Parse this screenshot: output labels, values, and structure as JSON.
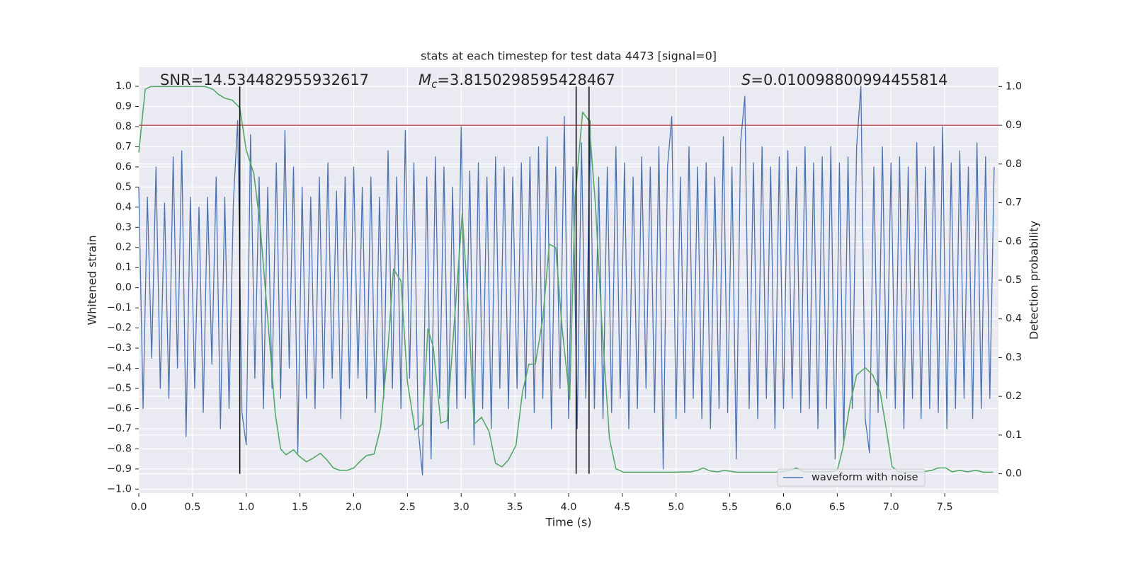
{
  "chart_data": {
    "type": "line",
    "title": "stats at each timestep for test data 4473 [signal=0]",
    "x_label": "Time (s)",
    "y_label": "Whitened strain",
    "y2_label": "Detection probability",
    "annotations": [
      {
        "text": "SNR=14.534482955932617"
      },
      {
        "symbol": "M",
        "subscript": "c",
        "text": "=3.8150298595428467"
      },
      {
        "symbol": "S",
        "text": "=0.010098800994455814"
      }
    ],
    "xlim": [
      0,
      8
    ],
    "ylim": [
      -1.02,
      1.095
    ],
    "y2lim": [
      -0.05,
      1.05
    ],
    "xticks": [
      {
        "value": 0,
        "label": "0.0"
      },
      0.5,
      {
        "value": 1,
        "label": "1.0"
      },
      1.5,
      {
        "value": 2,
        "label": "2.0"
      },
      2.5,
      {
        "value": 3,
        "label": "3.0"
      },
      3.5,
      {
        "value": 4,
        "label": "4.0"
      },
      4.5,
      {
        "value": 5,
        "label": "5.0"
      },
      5.5,
      {
        "value": 6,
        "label": "6.0"
      },
      6.5,
      {
        "value": 7,
        "label": "7.0"
      },
      7.5
    ],
    "yticks": [
      {
        "value": -1,
        "label": "−1.0"
      },
      {
        "value": -0.9,
        "label": "−0.9"
      },
      {
        "value": -0.8,
        "label": "−0.8"
      },
      {
        "value": -0.7,
        "label": "−0.7"
      },
      {
        "value": -0.6,
        "label": "−0.6"
      },
      {
        "value": -0.5,
        "label": "−0.5"
      },
      {
        "value": -0.4,
        "label": "−0.4"
      },
      {
        "value": -0.3,
        "label": "−0.3"
      },
      {
        "value": -0.2,
        "label": "−0.2"
      },
      {
        "value": -0.1,
        "label": "−0.1"
      },
      {
        "value": 0,
        "label": "0.0"
      },
      0.1,
      0.2,
      0.3,
      0.4,
      0.5,
      0.6,
      0.7,
      0.8,
      0.9,
      {
        "value": 1,
        "label": "1.0"
      }
    ],
    "y2ticks": [
      {
        "value": 0,
        "label": "0.0"
      },
      0.1,
      0.2,
      0.3,
      0.4,
      0.5,
      0.6,
      0.7,
      0.8,
      0.9,
      {
        "value": 1,
        "label": "1.0"
      }
    ],
    "grid": true,
    "legend": "lower right",
    "series": [
      {
        "name": "waveform with noise",
        "color": "#4c72b0",
        "x": [
          0,
          0.04,
          0.08,
          0.12,
          0.16,
          0.2,
          0.24,
          0.28,
          0.32,
          0.36,
          0.4,
          0.44,
          0.48,
          0.52,
          0.56,
          0.6,
          0.64,
          0.68,
          0.72,
          0.76,
          0.8,
          0.84,
          0.88,
          0.92,
          0.96,
          1,
          1.04,
          1.08,
          1.12,
          1.16,
          1.2,
          1.24,
          1.28,
          1.32,
          1.36,
          1.4,
          1.44,
          1.48,
          1.52,
          1.56,
          1.6,
          1.64,
          1.68,
          1.72,
          1.76,
          1.8,
          1.84,
          1.88,
          1.92,
          1.96,
          2,
          2.04,
          2.08,
          2.12,
          2.16,
          2.2,
          2.24,
          2.28,
          2.32,
          2.36,
          2.4,
          2.44,
          2.48,
          2.52,
          2.56,
          2.6,
          2.64,
          2.68,
          2.72,
          2.76,
          2.8,
          2.84,
          2.88,
          2.92,
          2.96,
          3,
          3.04,
          3.08,
          3.12,
          3.16,
          3.2,
          3.24,
          3.28,
          3.32,
          3.36,
          3.4,
          3.44,
          3.48,
          3.52,
          3.56,
          3.6,
          3.64,
          3.68,
          3.72,
          3.76,
          3.8,
          3.84,
          3.88,
          3.92,
          3.96,
          4,
          4.04,
          4.08,
          4.12,
          4.16,
          4.2,
          4.24,
          4.28,
          4.32,
          4.36,
          4.4,
          4.44,
          4.48,
          4.52,
          4.56,
          4.6,
          4.64,
          4.68,
          4.72,
          4.76,
          4.8,
          4.84,
          4.88,
          4.92,
          4.96,
          5,
          5.04,
          5.08,
          5.12,
          5.16,
          5.2,
          5.24,
          5.28,
          5.32,
          5.36,
          5.4,
          5.44,
          5.48,
          5.52,
          5.56,
          5.6,
          5.64,
          5.68,
          5.72,
          5.76,
          5.8,
          5.84,
          5.88,
          5.92,
          5.96,
          6,
          6.04,
          6.08,
          6.12,
          6.16,
          6.2,
          6.24,
          6.28,
          6.32,
          6.36,
          6.4,
          6.44,
          6.48,
          6.52,
          6.56,
          6.6,
          6.64,
          6.68,
          6.72,
          6.76,
          6.8,
          6.84,
          6.88,
          6.92,
          6.96,
          7,
          7.04,
          7.08,
          7.12,
          7.16,
          7.2,
          7.24,
          7.28,
          7.32,
          7.36,
          7.4,
          7.44,
          7.48,
          7.52,
          7.56,
          7.6,
          7.64,
          7.68,
          7.72,
          7.76,
          7.8,
          7.84,
          7.88,
          7.92,
          7.96
        ],
        "values": [
          0.5,
          -0.6,
          0.45,
          -0.35,
          0.6,
          -0.5,
          0.42,
          -0.55,
          0.65,
          -0.4,
          0.68,
          -0.74,
          0.45,
          -0.5,
          0.4,
          -0.62,
          0.45,
          -0.38,
          0.55,
          -0.7,
          0.45,
          -0.6,
          0.42,
          0.83,
          -0.62,
          -0.78,
          0.76,
          -0.45,
          0.55,
          -0.6,
          0.5,
          -0.5,
          0.62,
          -0.55,
          0.78,
          -0.4,
          0.6,
          -0.82,
          0.5,
          -0.55,
          0.45,
          -0.6,
          0.55,
          -0.5,
          0.62,
          -0.45,
          0.48,
          -0.65,
          0.55,
          -0.5,
          0.6,
          -0.45,
          0.5,
          -0.55,
          0.55,
          -0.62,
          0.45,
          -0.55,
          0.68,
          -0.5,
          0.55,
          -0.6,
          0.78,
          -0.45,
          0.62,
          -0.7,
          -0.93,
          0.55,
          -0.85,
          0.65,
          -0.55,
          0.6,
          -0.7,
          0.5,
          -0.6,
          0.8,
          -0.55,
          0.58,
          -0.78,
          0.62,
          -0.6,
          0.55,
          -0.7,
          0.65,
          -0.5,
          0.6,
          -0.6,
          0.55,
          -0.5,
          0.62,
          -0.55,
          0.65,
          -0.62,
          0.7,
          -0.55,
          0.75,
          -0.7,
          0.6,
          -0.5,
          0.85,
          -0.65,
          0.6,
          -0.7,
          0.72,
          -0.55,
          0.83,
          -0.6,
          0.55,
          -0.65,
          0.6,
          -0.62,
          0.7,
          -0.55,
          0.62,
          -0.7,
          0.55,
          -0.6,
          0.65,
          -0.5,
          0.6,
          -0.62,
          0.7,
          -0.9,
          0.6,
          0.85,
          -0.65,
          0.55,
          -0.62,
          0.7,
          -0.55,
          0.6,
          -0.65,
          0.62,
          -0.7,
          0.55,
          -0.6,
          0.75,
          -0.62,
          0.6,
          -0.85,
          0.72,
          0.95,
          -0.6,
          0.62,
          -0.65,
          0.7,
          -0.55,
          0.6,
          -0.7,
          0.65,
          -0.6,
          0.68,
          -0.55,
          0.6,
          -0.62,
          0.7,
          -0.6,
          0.62,
          -0.7,
          0.65,
          -0.6,
          0.7,
          -0.85,
          0.62,
          -0.78,
          0.65,
          -0.6,
          0.7,
          1.0,
          -0.65,
          -0.82,
          0.6,
          -0.62,
          0.7,
          -0.55,
          0.62,
          -0.6,
          0.65,
          -0.7,
          0.6,
          -0.55,
          0.72,
          -0.65,
          0.6,
          -0.6,
          0.7,
          -0.62,
          0.8,
          -0.7,
          0.62,
          -0.6,
          0.68,
          -0.55,
          0.6,
          -0.65,
          0.72,
          -0.6,
          0.65,
          -0.55,
          0.6
        ]
      },
      {
        "color": "#55a868",
        "axis": "y2",
        "x": [
          0,
          0.06,
          0.11,
          0.62,
          0.69,
          0.74,
          0.8,
          0.87,
          0.94,
          1,
          1.07,
          1.13,
          1.2,
          1.27,
          1.32,
          1.37,
          1.44,
          1.49,
          1.56,
          1.62,
          1.69,
          1.75,
          1.81,
          1.87,
          1.94,
          2,
          2.07,
          2.12,
          2.19,
          2.25,
          2.32,
          2.37,
          2.44,
          2.5,
          2.57,
          2.64,
          2.69,
          2.74,
          2.81,
          2.87,
          2.94,
          3.01,
          3.07,
          3.12,
          3.19,
          3.26,
          3.32,
          3.38,
          3.44,
          3.51,
          3.57,
          3.63,
          3.69,
          3.76,
          3.82,
          3.88,
          3.94,
          4.01,
          4.06,
          4.13,
          4.19,
          4.25,
          4.31,
          4.38,
          4.44,
          4.51,
          4.64,
          4.97,
          5.14,
          5.2,
          5.25,
          5.32,
          5.39,
          5.45,
          5.56,
          5.7,
          5.83,
          5.96,
          6.06,
          6.12,
          6.19,
          6.35,
          6.43,
          6.5,
          6.55,
          6.62,
          6.68,
          6.76,
          6.83,
          6.9,
          6.96,
          7.01,
          7.08,
          7.15,
          7.28,
          7.38,
          7.44,
          7.51,
          7.57,
          7.64,
          7.71,
          7.79,
          7.86,
          7.95
        ],
        "values": [
          0.83,
          0.993,
          1,
          1,
          0.993,
          0.98,
          0.97,
          0.965,
          0.945,
          0.836,
          0.776,
          0.64,
          0.4,
          0.155,
          0.064,
          0.049,
          0.062,
          0.046,
          0.031,
          0.04,
          0.053,
          0.036,
          0.015,
          0.009,
          0.009,
          0.015,
          0.035,
          0.047,
          0.051,
          0.119,
          0.328,
          0.529,
          0.498,
          0.237,
          0.113,
          0.128,
          0.374,
          0.328,
          0.131,
          0.137,
          0.405,
          0.672,
          0.411,
          0.128,
          0.146,
          0.109,
          0.027,
          0.018,
          0.036,
          0.073,
          0.21,
          0.283,
          0.283,
          0.401,
          0.593,
          0.584,
          0.374,
          0.192,
          0.712,
          0.934,
          0.912,
          0.693,
          0.383,
          0.091,
          0.013,
          0.004,
          0.004,
          0.004,
          0.005,
          0.009,
          0.015,
          0.007,
          0.005,
          0.009,
          0.004,
          0.004,
          0.004,
          0.004,
          0.009,
          0.015,
          0.005,
          0.005,
          0.005,
          0.009,
          0.064,
          0.182,
          0.255,
          0.274,
          0.255,
          0.21,
          0.109,
          0.018,
          0.004,
          0.004,
          0.004,
          0.009,
          0.015,
          0.015,
          0.005,
          0.009,
          0.005,
          0.009,
          0.004,
          0.004
        ]
      }
    ],
    "hline": {
      "value": 0.9,
      "axis": "y2",
      "color": "#c44e52"
    },
    "vlines": {
      "x": [
        0.94,
        4.07,
        4.19
      ],
      "span": [
        0,
        1
      ],
      "axis": "y2",
      "color": "#000000"
    }
  }
}
